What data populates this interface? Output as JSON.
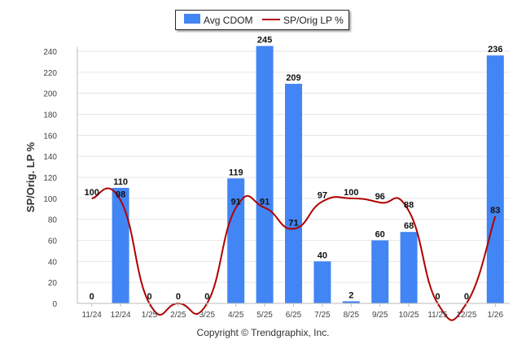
{
  "legend": {
    "bar_label": "Avg CDOM",
    "line_label": "SP/Orig LP %"
  },
  "footer": {
    "copyright": "Copyright © Trendgraphix, Inc."
  },
  "chart_data": {
    "type": "bar",
    "categories": [
      "11/24",
      "12/24",
      "1/25",
      "2/25",
      "3/25",
      "4/25",
      "5/25",
      "6/25",
      "7/25",
      "8/25",
      "9/25",
      "10/25",
      "11/25",
      "12/25",
      "1/26"
    ],
    "series": [
      {
        "name": "Avg CDOM",
        "type": "bar",
        "color": "#4285f4",
        "values": [
          0,
          110,
          0,
          0,
          0,
          119,
          245,
          209,
          40,
          2,
          60,
          68,
          0,
          0,
          236
        ],
        "labels": [
          "0",
          "110",
          "0",
          "0",
          "0",
          "119",
          "245",
          "209",
          "40",
          "2",
          "60",
          "68",
          "0",
          "0",
          "236"
        ]
      },
      {
        "name": "SP/Orig LP %",
        "type": "line",
        "color": "#b00000",
        "values": [
          100,
          98,
          0,
          0,
          0,
          91,
          91,
          71,
          97,
          100,
          96,
          88,
          0,
          0,
          83
        ],
        "labels": [
          "100",
          "98",
          "",
          "",
          "",
          "91",
          "91",
          "71",
          "97",
          "100",
          "96",
          "88",
          "",
          "",
          "83"
        ]
      }
    ],
    "ylabel": "SP/Orig. LP %",
    "ylim": [
      0,
      240
    ],
    "yticks": [
      0,
      20,
      40,
      60,
      80,
      100,
      120,
      140,
      160,
      180,
      200,
      220,
      240
    ],
    "grid": true,
    "legend_position": "top"
  }
}
